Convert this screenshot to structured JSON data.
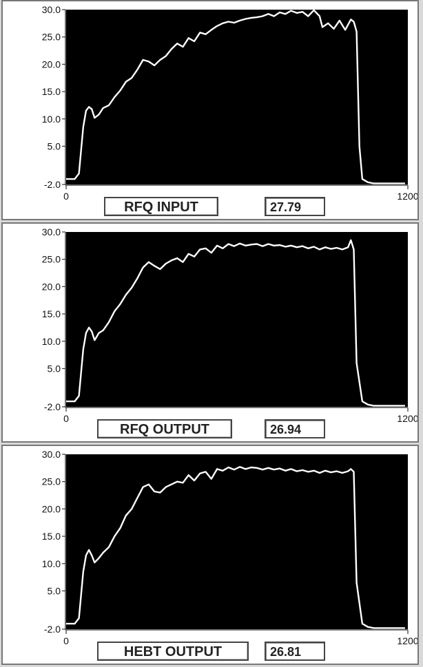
{
  "chart_data": [
    {
      "type": "line",
      "label": "RFQ INPUT",
      "value": "27.79",
      "ylim": [
        -2.0,
        30.0
      ],
      "xlim": [
        0,
        1200
      ],
      "y_ticks": [
        "30.0",
        "25.0",
        "20.0",
        "15.0",
        "10.0",
        "5.0",
        "-2.0"
      ],
      "y_tick_values": [
        30,
        25,
        20,
        15,
        10,
        5,
        -2
      ],
      "x_ticks": [
        "0",
        "1200"
      ],
      "x_tick_values": [
        0,
        1200
      ],
      "colors": {
        "plot_bg": "#000000",
        "trace": "#ffffff"
      },
      "series": [
        {
          "x": [
            0,
            30,
            45,
            60,
            70,
            80,
            90,
            100,
            115,
            130,
            150,
            170,
            190,
            210,
            230,
            250,
            270,
            290,
            310,
            330,
            350,
            370,
            390,
            410,
            430,
            450,
            470,
            490,
            510,
            530,
            550,
            570,
            590,
            610,
            630,
            650,
            670,
            690,
            710,
            730,
            750,
            770,
            790,
            810,
            830,
            850,
            870,
            890,
            900,
            920,
            940,
            960,
            980,
            1000,
            1010,
            1020,
            1030,
            1040,
            1060,
            1080,
            1100,
            1130,
            1160,
            1190
          ],
          "y": [
            -1.0,
            -1.0,
            0.0,
            8.5,
            11.5,
            12.2,
            11.8,
            10.2,
            10.8,
            12.0,
            12.5,
            14.0,
            15.2,
            16.8,
            17.5,
            19.0,
            20.8,
            20.5,
            19.8,
            20.8,
            21.5,
            22.8,
            23.8,
            23.2,
            24.8,
            24.2,
            25.8,
            25.5,
            26.3,
            27.0,
            27.5,
            27.8,
            27.6,
            28.0,
            28.3,
            28.5,
            28.6,
            28.8,
            29.2,
            28.8,
            29.5,
            29.2,
            29.8,
            29.4,
            29.6,
            28.8,
            29.9,
            28.8,
            26.8,
            27.5,
            26.5,
            28.0,
            26.3,
            28.2,
            27.8,
            26.0,
            5.0,
            -1.0,
            -1.6,
            -1.8,
            -1.8,
            -1.8,
            -1.8,
            -1.8
          ]
        }
      ]
    },
    {
      "type": "line",
      "label": "RFQ OUTPUT",
      "value": "26.94",
      "ylim": [
        -2.0,
        30.0
      ],
      "xlim": [
        0,
        1200
      ],
      "y_ticks": [
        "30.0",
        "25.0",
        "20.0",
        "15.0",
        "10.0",
        "5.0",
        "-2.0"
      ],
      "y_tick_values": [
        30,
        25,
        20,
        15,
        10,
        5,
        -2
      ],
      "x_ticks": [
        "0",
        "1200"
      ],
      "x_tick_values": [
        0,
        1200
      ],
      "colors": {
        "plot_bg": "#000000",
        "trace": "#ffffff"
      },
      "series": [
        {
          "x": [
            0,
            30,
            45,
            60,
            70,
            80,
            90,
            100,
            115,
            130,
            150,
            170,
            190,
            210,
            230,
            250,
            270,
            290,
            310,
            330,
            350,
            370,
            390,
            410,
            430,
            450,
            470,
            490,
            510,
            530,
            550,
            570,
            590,
            610,
            630,
            650,
            670,
            690,
            710,
            730,
            750,
            770,
            790,
            810,
            830,
            850,
            870,
            890,
            910,
            930,
            950,
            970,
            990,
            1000,
            1010,
            1020,
            1040,
            1060,
            1080,
            1100,
            1130,
            1160,
            1190
          ],
          "y": [
            -1.0,
            -1.0,
            0.0,
            8.5,
            11.5,
            12.5,
            11.8,
            10.2,
            11.5,
            12.0,
            13.5,
            15.5,
            16.8,
            18.5,
            19.8,
            21.5,
            23.5,
            24.5,
            23.8,
            23.2,
            24.2,
            24.8,
            25.2,
            24.5,
            26.0,
            25.5,
            26.8,
            27.0,
            26.2,
            27.5,
            27.0,
            27.8,
            27.4,
            27.9,
            27.5,
            27.7,
            27.8,
            27.4,
            27.8,
            27.5,
            27.6,
            27.3,
            27.5,
            27.2,
            27.4,
            27.0,
            27.3,
            26.8,
            27.2,
            26.9,
            27.1,
            26.8,
            27.2,
            28.5,
            26.8,
            6.0,
            -1.0,
            -1.6,
            -1.8,
            -1.8,
            -1.8,
            -1.8,
            -1.8
          ]
        }
      ]
    },
    {
      "type": "line",
      "label": "HEBT OUTPUT",
      "value": "26.81",
      "ylim": [
        -2.0,
        30.0
      ],
      "xlim": [
        0,
        1200
      ],
      "y_ticks": [
        "30.0",
        "25.0",
        "20.0",
        "15.0",
        "10.0",
        "5.0",
        "-2.0"
      ],
      "y_tick_values": [
        30,
        25,
        20,
        15,
        10,
        5,
        -2
      ],
      "x_ticks": [
        "0",
        "1200"
      ],
      "x_tick_values": [
        0,
        1200
      ],
      "colors": {
        "plot_bg": "#000000",
        "trace": "#ffffff"
      },
      "series": [
        {
          "x": [
            0,
            30,
            45,
            60,
            70,
            80,
            90,
            100,
            115,
            130,
            150,
            170,
            190,
            210,
            230,
            250,
            270,
            290,
            310,
            330,
            350,
            370,
            390,
            410,
            430,
            450,
            470,
            490,
            510,
            530,
            550,
            570,
            590,
            610,
            630,
            650,
            670,
            690,
            710,
            730,
            750,
            770,
            790,
            810,
            830,
            850,
            870,
            890,
            910,
            930,
            950,
            970,
            990,
            1000,
            1010,
            1020,
            1040,
            1060,
            1080,
            1100,
            1130,
            1160,
            1190
          ],
          "y": [
            -1.0,
            -1.0,
            0.0,
            8.5,
            11.5,
            12.5,
            11.5,
            10.2,
            11.0,
            12.0,
            13.0,
            15.0,
            16.5,
            18.8,
            20.0,
            22.0,
            24.0,
            24.5,
            23.2,
            23.0,
            24.0,
            24.5,
            25.0,
            24.8,
            26.2,
            25.2,
            26.5,
            26.8,
            25.5,
            27.3,
            27.0,
            27.6,
            27.2,
            27.7,
            27.3,
            27.6,
            27.5,
            27.2,
            27.5,
            27.2,
            27.4,
            27.0,
            27.3,
            26.9,
            27.1,
            26.8,
            27.0,
            26.6,
            27.0,
            26.7,
            26.9,
            26.6,
            26.9,
            27.3,
            26.8,
            6.5,
            -1.0,
            -1.6,
            -1.8,
            -1.8,
            -1.8,
            -1.8,
            -1.8
          ]
        }
      ]
    }
  ]
}
